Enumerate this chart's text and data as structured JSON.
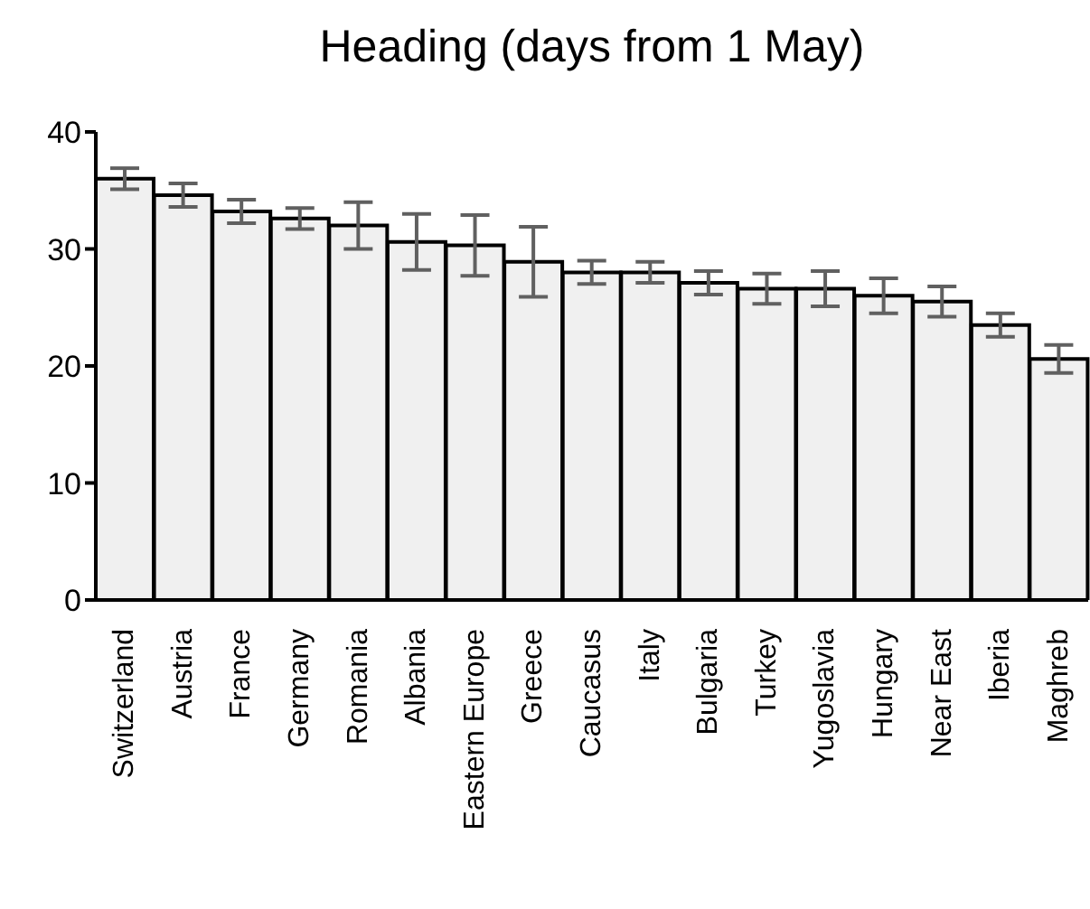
{
  "chart_data": {
    "type": "bar",
    "title": "Heading (days from 1 May)",
    "categories": [
      "Switzerland",
      "Austria",
      "France",
      "Germany",
      "Romania",
      "Albania",
      "Eastern Europe",
      "Greece",
      "Caucasus",
      "Italy",
      "Bulgaria",
      "Turkey",
      "Yugoslavia",
      "Hungary",
      "Near East",
      "Iberia",
      "Maghreb"
    ],
    "values": [
      36.0,
      34.6,
      33.2,
      32.6,
      32.0,
      30.6,
      30.3,
      28.9,
      28.0,
      28.0,
      27.1,
      26.6,
      26.6,
      26.0,
      25.5,
      23.5,
      20.6
    ],
    "errors": [
      0.9,
      1.0,
      1.0,
      0.9,
      2.0,
      2.4,
      2.6,
      3.0,
      1.0,
      0.9,
      1.0,
      1.3,
      1.5,
      1.5,
      1.3,
      1.0,
      1.2
    ],
    "color": "#f0f0f0",
    "ylim": [
      0,
      40
    ],
    "yticks": [
      0,
      10,
      20,
      30,
      40
    ],
    "grid": false
  }
}
